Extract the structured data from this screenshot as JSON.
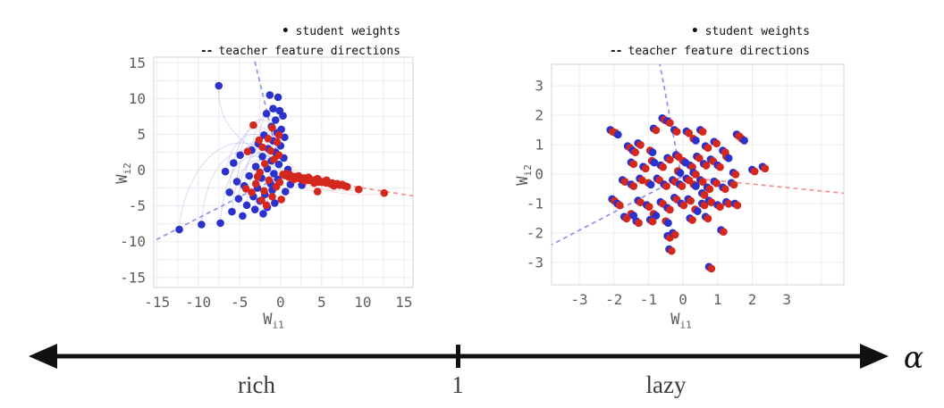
{
  "legend": {
    "marker_dot": "•",
    "marker_dash": "--",
    "student_label": "student weights",
    "teacher_label": "teacher feature directions"
  },
  "alpha_axis": {
    "rich_label": "rich",
    "one_label": "1",
    "lazy_label": "lazy",
    "alpha_symbol": "α"
  },
  "colors": {
    "student_blue": "#2b32cc",
    "student_red": "#d4281f",
    "teacher_blue_dash": "#9191ea",
    "teacher_red_dash": "#f29090",
    "trajectory_blue": "#b4b5ec",
    "trajectory_red": "#f2b8b4",
    "grid": "#ebebf0",
    "spine": "#d9d9e2",
    "tick_text": "#5f5f5f",
    "axis_black": "#111111"
  },
  "chart_data": [
    {
      "type": "scatter",
      "regime": "rich",
      "xlabel": "W",
      "xlabel_sub": "i1",
      "ylabel": "W",
      "ylabel_sub": "i2",
      "xlim": [
        -15.4,
        16.1
      ],
      "ylim": [
        -16.4,
        15.8
      ],
      "xticks": [
        -15,
        -10,
        -5,
        0,
        5,
        10,
        15
      ],
      "yticks": [
        -15,
        -10,
        -5,
        0,
        5,
        10,
        15
      ],
      "grid_step": 2.5,
      "marker_radius": 4.3,
      "teacher_lines": [
        {
          "color": "blue",
          "from": [
            0.2,
            -0.7
          ],
          "to": [
            -3.2,
            15.6
          ]
        },
        {
          "color": "blue",
          "from": [
            0.2,
            -0.7
          ],
          "to": [
            -15.4,
            -9.9
          ]
        },
        {
          "color": "red",
          "from": [
            0.2,
            -0.7
          ],
          "to": [
            16.1,
            -3.6
          ]
        }
      ],
      "trajectories_blue": [
        [
          -7.5,
          11.8,
          -7.8,
          6.0,
          -4.0,
          3.0,
          -0.6,
          1.5
        ],
        [
          -12.3,
          -8.3,
          -12.0,
          -2.0,
          -8.0,
          6.5,
          -2.0,
          3.0
        ],
        [
          -9.6,
          -7.6,
          -9.3,
          -1.0,
          -6.5,
          5.0,
          -1.5,
          1.8
        ],
        [
          -7.3,
          -7.4,
          -7.0,
          -1.5,
          -5.0,
          4.0,
          -1.2,
          1.2
        ],
        [
          -6.2,
          -3.1,
          -6.0,
          2.0,
          -4.0,
          5.5,
          -0.9,
          2.2
        ],
        [
          -5.9,
          -5.8,
          -5.5,
          0.0,
          -3.5,
          3.0,
          -0.8,
          0.6
        ],
        [
          -5.3,
          -1.6,
          -5.0,
          3.0,
          -3.0,
          6.0,
          -0.7,
          2.8
        ],
        [
          -5.1,
          -4.0,
          -4.8,
          1.0,
          -2.8,
          4.5,
          -0.6,
          1.0
        ],
        [
          -4.4,
          -2.2,
          -4.2,
          2.5,
          -2.5,
          5.0,
          -0.5,
          2.0
        ],
        [
          -4.1,
          -4.9,
          -3.9,
          0.5,
          -2.2,
          3.5,
          -0.5,
          0.4
        ],
        [
          -6.7,
          -0.2,
          -6.0,
          4.0,
          -3.5,
          7.0,
          -1.0,
          3.5
        ],
        [
          -5.7,
          1.0,
          -5.0,
          5.0,
          -3.0,
          8.0,
          -0.8,
          4.5
        ],
        [
          -4.9,
          2.1,
          -4.3,
          6.0,
          -2.6,
          9.0,
          -0.6,
          5.5
        ],
        [
          -3.5,
          2.8,
          -3.1,
          6.5,
          -1.9,
          9.5,
          -0.4,
          6.5
        ],
        [
          -2.7,
          3.7,
          -2.4,
          7.0,
          -1.5,
          10.0,
          -0.3,
          7.5
        ],
        [
          -3.1,
          -5.5,
          -2.9,
          -0.5,
          -1.8,
          2.0,
          -0.4,
          -0.2
        ],
        [
          -2.1,
          -6.1,
          -2.0,
          -1.5,
          -1.2,
          1.0,
          -0.3,
          -0.8
        ],
        [
          -1.6,
          -5.2,
          -1.5,
          -1.0,
          -0.9,
          0.5,
          -0.2,
          -0.5
        ]
      ],
      "trajectories_red": [
        [
          12.6,
          -3.2,
          9.0,
          -3.8,
          5.0,
          -3.2,
          1.8,
          -1.1
        ],
        [
          9.5,
          -2.7,
          7.0,
          -3.2,
          4.0,
          -2.8,
          1.2,
          -1.0
        ],
        [
          -3.3,
          6.3,
          -1.5,
          4.0,
          1.0,
          1.5,
          2.5,
          -1.2
        ],
        [
          -2.5,
          -0.3,
          -1.0,
          -2.5,
          1.0,
          -2.5,
          3.0,
          -1.4
        ],
        [
          4.5,
          -3.0,
          3.0,
          -2.8,
          2.0,
          -2.0,
          1.0,
          -0.9
        ]
      ],
      "student_points_blue": [
        [
          -7.5,
          11.8
        ],
        [
          -1.3,
          10.5
        ],
        [
          -0.3,
          10.2
        ],
        [
          -0.9,
          8.6
        ],
        [
          -0.1,
          8.3
        ],
        [
          -1.7,
          7.9
        ],
        [
          0.3,
          7.6
        ],
        [
          -0.6,
          7.0
        ],
        [
          -1.1,
          6.1
        ],
        [
          0.1,
          5.7
        ],
        [
          -0.4,
          5.2
        ],
        [
          -2.0,
          4.9
        ],
        [
          0.5,
          4.6
        ],
        [
          -0.9,
          4.1
        ],
        [
          -2.7,
          3.7
        ],
        [
          0.0,
          3.4
        ],
        [
          -1.5,
          3.0
        ],
        [
          -3.5,
          2.8
        ],
        [
          -0.6,
          2.5
        ],
        [
          -4.9,
          2.1
        ],
        [
          -2.2,
          1.9
        ],
        [
          0.4,
          1.7
        ],
        [
          -1.1,
          1.3
        ],
        [
          -5.7,
          1.0
        ],
        [
          -0.2,
          0.8
        ],
        [
          -3.0,
          0.5
        ],
        [
          -1.6,
          0.2
        ],
        [
          -6.7,
          -0.2
        ],
        [
          -0.8,
          -0.5
        ],
        [
          -3.8,
          -0.8
        ],
        [
          -2.3,
          -1.1
        ],
        [
          -0.3,
          -1.3
        ],
        [
          -5.3,
          -1.6
        ],
        [
          -1.2,
          -1.9
        ],
        [
          -4.4,
          -2.2
        ],
        [
          -2.8,
          -2.5
        ],
        [
          -1.0,
          -2.8
        ],
        [
          -6.2,
          -3.1
        ],
        [
          -1.9,
          -3.4
        ],
        [
          -3.3,
          -3.7
        ],
        [
          -5.1,
          -4.0
        ],
        [
          -2.5,
          -4.3
        ],
        [
          -0.7,
          -4.6
        ],
        [
          -4.1,
          -4.9
        ],
        [
          -1.6,
          -5.2
        ],
        [
          -3.1,
          -5.5
        ],
        [
          -5.9,
          -5.8
        ],
        [
          -2.1,
          -6.1
        ],
        [
          -4.6,
          -6.4
        ],
        [
          -7.3,
          -7.4
        ],
        [
          -9.6,
          -7.6
        ],
        [
          -12.3,
          -8.3
        ],
        [
          0.6,
          -3.0
        ],
        [
          0.9,
          0.1
        ],
        [
          1.2,
          -2.0
        ],
        [
          2.6,
          -2.1
        ]
      ],
      "student_points_red": [
        [
          0.3,
          -0.6
        ],
        [
          0.55,
          -0.75
        ],
        [
          0.8,
          -0.7
        ],
        [
          1.0,
          -0.95
        ],
        [
          1.2,
          -0.85
        ],
        [
          1.45,
          -1.0
        ],
        [
          1.65,
          -0.9
        ],
        [
          1.85,
          -1.1
        ],
        [
          2.05,
          -1.0
        ],
        [
          2.25,
          -1.15
        ],
        [
          2.45,
          -1.05
        ],
        [
          2.65,
          -1.25
        ],
        [
          2.85,
          -1.1
        ],
        [
          3.05,
          -1.3
        ],
        [
          3.25,
          -1.2
        ],
        [
          3.45,
          -1.4
        ],
        [
          3.65,
          -1.3
        ],
        [
          3.85,
          -1.5
        ],
        [
          4.05,
          -1.4
        ],
        [
          4.25,
          -1.55
        ],
        [
          4.45,
          -1.45
        ],
        [
          4.65,
          -1.65
        ],
        [
          4.85,
          -1.55
        ],
        [
          5.05,
          -1.7
        ],
        [
          5.3,
          -1.6
        ],
        [
          5.55,
          -1.8
        ],
        [
          5.8,
          -1.7
        ],
        [
          6.05,
          -1.9
        ],
        [
          6.3,
          -1.8
        ],
        [
          6.6,
          -2.0
        ],
        [
          6.9,
          -1.9
        ],
        [
          7.2,
          -2.1
        ],
        [
          7.5,
          -2.0
        ],
        [
          7.8,
          -2.2
        ],
        [
          8.1,
          -2.3
        ],
        [
          2.2,
          -0.8
        ],
        [
          3.4,
          -1.0
        ],
        [
          4.5,
          -1.2
        ],
        [
          5.6,
          -1.4
        ],
        [
          1.6,
          -1.3
        ],
        [
          2.9,
          -1.5
        ],
        [
          4.1,
          -1.8
        ],
        [
          6.5,
          -2.2
        ],
        [
          0.7,
          -0.5
        ],
        [
          1.1,
          -0.6
        ],
        [
          9.5,
          -2.7
        ],
        [
          12.6,
          -3.2
        ],
        [
          4.5,
          -3.0
        ],
        [
          -3.3,
          6.3
        ],
        [
          -2.6,
          4.2
        ],
        [
          -4.0,
          2.6
        ],
        [
          -1.0,
          5.9
        ],
        [
          -0.2,
          4.9
        ],
        [
          -1.5,
          4.4
        ],
        [
          -0.4,
          3.9
        ],
        [
          -2.2,
          3.2
        ],
        [
          -1.2,
          2.7
        ],
        [
          -0.2,
          2.1
        ],
        [
          -0.8,
          1.5
        ],
        [
          -1.9,
          0.9
        ],
        [
          -2.5,
          -0.3
        ],
        [
          -1.4,
          -1.4
        ],
        [
          -3.0,
          -1.9
        ],
        [
          -0.5,
          -2.3
        ],
        [
          -2.0,
          -2.9
        ],
        [
          -3.5,
          -3.1
        ],
        [
          -1.0,
          -3.7
        ],
        [
          -2.3,
          -4.2
        ],
        [
          -4.2,
          -2.6
        ],
        [
          -1.7,
          -4.9
        ],
        [
          0.1,
          -4.1
        ],
        [
          -2.8,
          -0.9
        ],
        [
          -0.1,
          -1.7
        ]
      ]
    },
    {
      "type": "scatter",
      "regime": "lazy",
      "xlabel": "W",
      "xlabel_sub": "i1",
      "ylabel": "W",
      "ylabel_sub": "i2",
      "xlim": [
        -3.8,
        4.65
      ],
      "ylim": [
        -3.76,
        3.73
      ],
      "xticks": [
        -3,
        -2,
        -1,
        0,
        1,
        2,
        3
      ],
      "yticks": [
        -3,
        -2,
        -1,
        0,
        1,
        2,
        3
      ],
      "grid_step": 1,
      "marker_radius": 4.4,
      "teacher_lines": [
        {
          "color": "blue",
          "from": [
            -0.05,
            -0.1
          ],
          "to": [
            -0.67,
            3.73
          ]
        },
        {
          "color": "blue",
          "from": [
            -0.05,
            -0.1
          ],
          "to": [
            -3.8,
            -2.4
          ]
        },
        {
          "color": "red",
          "from": [
            -0.05,
            -0.1
          ],
          "to": [
            4.65,
            -0.65
          ]
        }
      ],
      "pair_offset": [
        0.07,
        -0.06
      ],
      "point_pairs": [
        [
          -2.1,
          1.5
        ],
        [
          -1.95,
          1.4,
          1
        ],
        [
          -1.6,
          0.95
        ],
        [
          -1.45,
          0.8
        ],
        [
          -1.3,
          1.05
        ],
        [
          -0.95,
          0.8,
          1
        ],
        [
          -0.85,
          1.55
        ],
        [
          -0.6,
          1.9
        ],
        [
          -0.45,
          1.8
        ],
        [
          -0.25,
          1.5
        ],
        [
          0.1,
          1.45
        ],
        [
          0.3,
          1.2,
          1
        ],
        [
          0.5,
          1.5
        ],
        [
          0.65,
          0.95
        ],
        [
          0.9,
          1.1
        ],
        [
          1.15,
          0.8
        ],
        [
          1.55,
          1.35
        ],
        [
          1.7,
          1.2,
          1
        ],
        [
          2.3,
          0.25
        ],
        [
          -1.5,
          0.4
        ],
        [
          -1.15,
          0.25
        ],
        [
          -0.9,
          0.45,
          1
        ],
        [
          -0.65,
          0.3
        ],
        [
          -0.45,
          0.55
        ],
        [
          -0.2,
          0.65
        ],
        [
          0.0,
          0.45,
          1
        ],
        [
          0.2,
          0.3
        ],
        [
          0.4,
          0.6
        ],
        [
          0.6,
          0.35
        ],
        [
          0.8,
          0.5
        ],
        [
          1.0,
          0.3
        ],
        [
          1.25,
          0.6,
          1
        ],
        [
          -1.75,
          -0.2
        ],
        [
          -1.5,
          -0.35
        ],
        [
          -1.25,
          -0.15
        ],
        [
          -1.0,
          -0.3,
          1
        ],
        [
          -0.75,
          -0.15
        ],
        [
          -0.55,
          -0.35
        ],
        [
          -0.3,
          -0.2
        ],
        [
          -0.1,
          -0.35
        ],
        [
          0.1,
          -0.15
        ],
        [
          0.3,
          -0.35,
          1
        ],
        [
          0.5,
          -0.2
        ],
        [
          0.7,
          -0.45
        ],
        [
          0.9,
          -0.25
        ],
        [
          1.15,
          -0.45
        ],
        [
          1.4,
          -0.3
        ],
        [
          -2.05,
          -0.85
        ],
        [
          -1.9,
          -1.0
        ],
        [
          -1.7,
          -1.45
        ],
        [
          -1.5,
          -1.35,
          1
        ],
        [
          -1.3,
          -0.9
        ],
        [
          -1.05,
          -1.05
        ],
        [
          -0.85,
          -1.35,
          1
        ],
        [
          -0.65,
          -0.95
        ],
        [
          -0.45,
          -1.15
        ],
        [
          -0.25,
          -0.8
        ],
        [
          -0.05,
          -1.0
        ],
        [
          0.15,
          -0.85
        ],
        [
          0.35,
          -1.2,
          1
        ],
        [
          0.55,
          -1.0
        ],
        [
          0.75,
          -0.9
        ],
        [
          1.0,
          -1.05
        ],
        [
          1.25,
          -0.95
        ],
        [
          1.5,
          -1.0
        ],
        [
          -1.35,
          -1.6
        ],
        [
          -0.95,
          -1.55
        ],
        [
          -0.5,
          -1.6,
          1
        ],
        [
          -0.45,
          -2.1
        ],
        [
          -0.3,
          -2.0
        ],
        [
          0.2,
          -1.5
        ],
        [
          0.65,
          -1.45
        ],
        [
          1.1,
          -1.9
        ],
        [
          -0.4,
          -2.55
        ],
        [
          0.75,
          -3.15
        ],
        [
          0.3,
          0.05
        ],
        [
          -0.15,
          0.1,
          1
        ],
        [
          0.55,
          -0.65
        ],
        [
          2.0,
          0.15
        ],
        [
          1.45,
          0.05
        ]
      ]
    }
  ]
}
